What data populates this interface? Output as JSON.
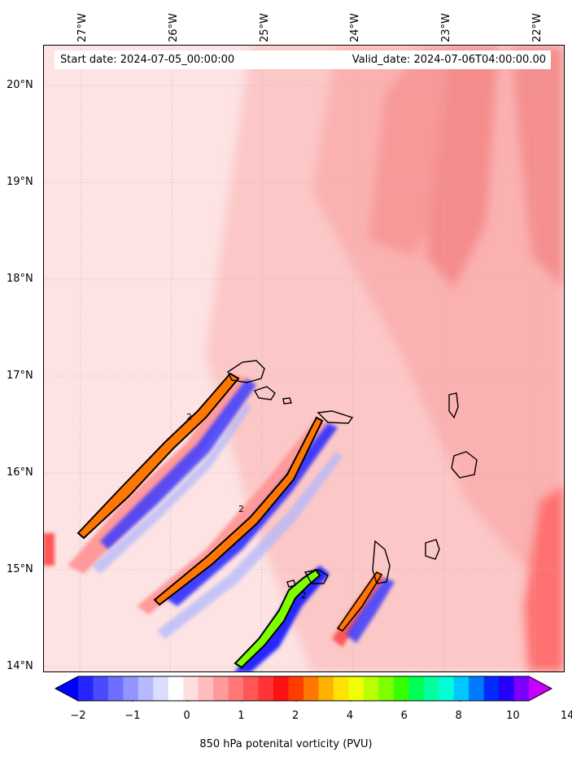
{
  "header": {
    "start_date": "Start date: 2024-07-05_00:00:00",
    "valid_date": "Valid_date: 2024-07-06T04:00:00.00"
  },
  "map": {
    "lon_labels": [
      "27°W",
      "26°W",
      "25°W",
      "24°W",
      "23°W",
      "22°W"
    ],
    "lat_labels": [
      "20°N",
      "19°N",
      "18°N",
      "17°N",
      "16°N",
      "15°N",
      "14°N"
    ],
    "extent": {
      "lon_min": -27.4,
      "lon_max": -21.7,
      "lat_min": 13.95,
      "lat_max": 20.4
    },
    "gridlines": true,
    "contour_label": "2",
    "background_color": "#fde3e3",
    "island_outline_color": "#000000"
  },
  "colorbar": {
    "title": "850 hPa potenital vorticity (PVU)",
    "tick_labels": [
      "−2",
      "−1",
      "0",
      "1",
      "2",
      "4",
      "6",
      "8",
      "10",
      "14"
    ],
    "colors": [
      "#0000ff",
      "#2525ff",
      "#4a4aff",
      "#6f6fff",
      "#9494ff",
      "#b8b8ff",
      "#dcdcff",
      "#ffffff",
      "#ffdede",
      "#ffbcbc",
      "#ff9a9a",
      "#ff7878",
      "#ff5656",
      "#ff3434",
      "#ff1111",
      "#ff3c00",
      "#ff7700",
      "#ffb100",
      "#ffe200",
      "#eeff00",
      "#b8ff00",
      "#7dff00",
      "#35ff00",
      "#00ff55",
      "#00ff9f",
      "#00ffd6",
      "#00c8ff",
      "#007bff",
      "#002aff",
      "#2400ff",
      "#7a00ff",
      "#c800ff"
    ],
    "extend": "both"
  }
}
